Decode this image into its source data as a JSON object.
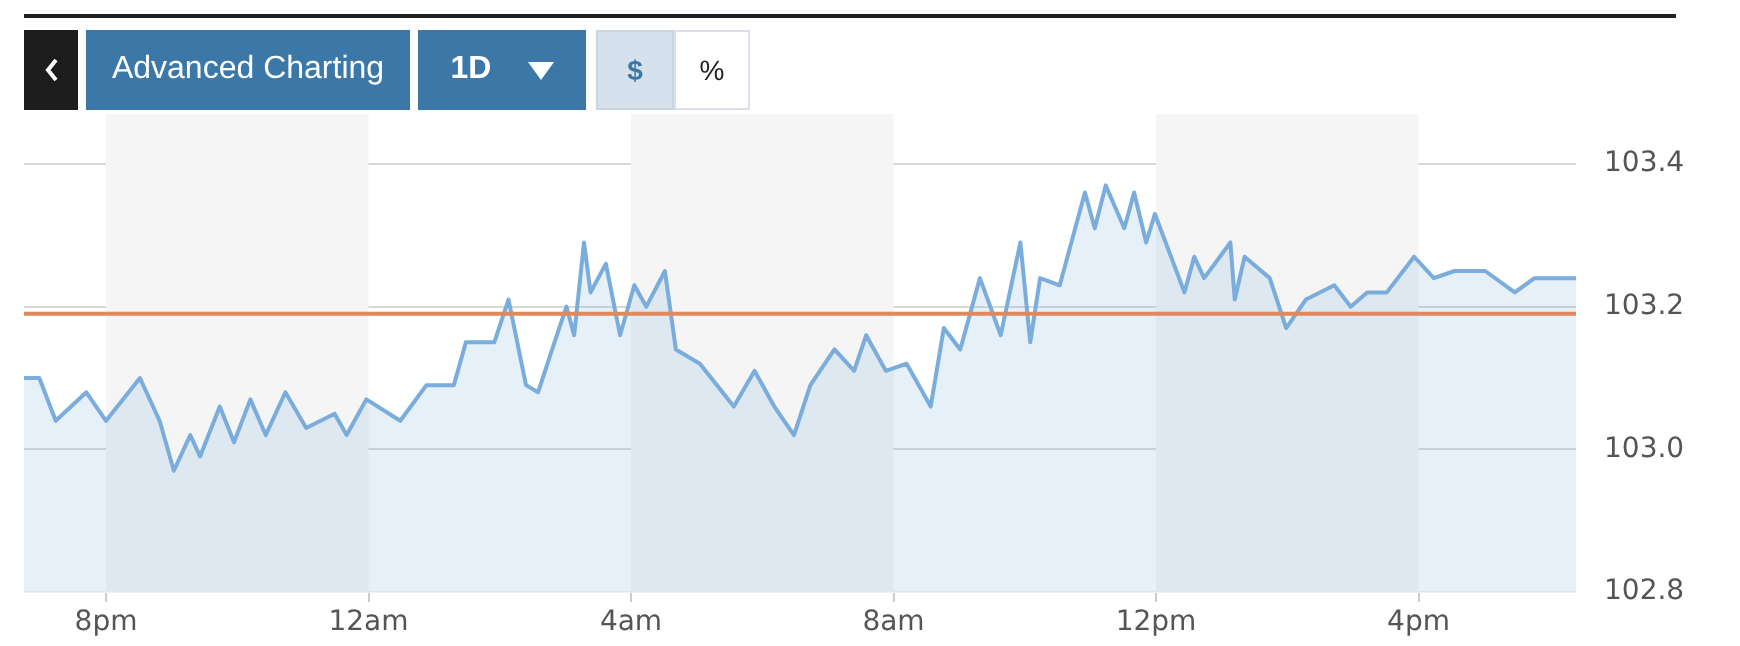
{
  "chart_data": {
    "type": "area",
    "annotations": [
      "Advanced Charting",
      "1D",
      "$",
      "%"
    ],
    "x": [
      "--01-01T18:45",
      "--01-01T18:59",
      "--01-01T19:14",
      "--01-01T19:42",
      "--01-01T20:00",
      "--01-01T20:31",
      "--01-01T20:49",
      "--01-01T21:02",
      "--01-01T21:17",
      "--01-01T21:26",
      "--01-01T21:44",
      "--01-01T21:57",
      "--01-01T22:12",
      "--01-01T22:26",
      "--01-01T22:44",
      "--01-01T23:03",
      "--01-01T23:29",
      "--01-01T23:40",
      "--01-01T23:58",
      "--01-02T00:29",
      "--01-02T00:53",
      "--01-02T01:18",
      "--01-02T01:29",
      "--01-02T01:55",
      "--01-02T02:08",
      "--01-02T02:24",
      "--01-02T02:35",
      "--01-02T02:50",
      "--01-02T03:01",
      "--01-02T03:08",
      "--01-02T03:17",
      "--01-02T03:23",
      "--01-02T03:37",
      "--01-02T03:50",
      "--01-02T04:03",
      "--01-02T04:14",
      "--01-02T04:31",
      "--01-02T04:41",
      "--01-02T05:03",
      "--01-02T05:34",
      "--01-02T05:53",
      "--01-02T06:11",
      "--01-02T06:29",
      "--01-02T06:44",
      "--01-02T07:06",
      "--01-02T07:24",
      "--01-02T07:35",
      "--01-02T07:53",
      "--01-02T08:12",
      "--01-02T08:34",
      "--01-02T08:46",
      "--01-02T09:01",
      "--01-02T09:19",
      "--01-02T09:38",
      "--01-02T09:56",
      "--01-02T10:05",
      "--01-02T10:14",
      "--01-02T10:32",
      "--01-02T10:55",
      "--01-02T11:04",
      "--01-02T11:14",
      "--01-02T11:31",
      "--01-02T11:40",
      "--01-02T11:51",
      "--01-02T11:59",
      "--01-02T12:26",
      "--01-02T12:35",
      "--01-02T12:44",
      "--01-02T13:08",
      "--01-02T13:12",
      "--01-02T13:21",
      "--01-02T13:44",
      "--01-02T13:59",
      "--01-02T14:17",
      "--01-02T14:43",
      "--01-02T14:58",
      "--01-02T15:13",
      "--01-02T15:31",
      "--01-02T15:56",
      "--01-02T16:14",
      "--01-02T16:33",
      "--01-02T17:01",
      "--01-02T17:28",
      "--01-02T17:46",
      "--01-02T17:57",
      "--01-02T18:24"
    ],
    "series": [
      {
        "color": "#7aaddc",
        "values": [
          103.1,
          103.1,
          103.04,
          103.08,
          103.04,
          103.1,
          103.04,
          102.97,
          103.02,
          102.99,
          103.06,
          103.01,
          103.07,
          103.02,
          103.08,
          103.03,
          103.05,
          103.02,
          103.07,
          103.04,
          103.09,
          103.09,
          103.15,
          103.15,
          103.21,
          103.09,
          103.08,
          103.15,
          103.2,
          103.16,
          103.29,
          103.22,
          103.26,
          103.16,
          103.23,
          103.2,
          103.25,
          103.14,
          103.12,
          103.06,
          103.11,
          103.06,
          103.02,
          103.09,
          103.14,
          103.11,
          103.16,
          103.11,
          103.12,
          103.06,
          103.17,
          103.14,
          103.24,
          103.16,
          103.29,
          103.15,
          103.24,
          103.23,
          103.36,
          103.31,
          103.37,
          103.31,
          103.36,
          103.29,
          103.33,
          103.22,
          103.27,
          103.24,
          103.29,
          103.21,
          103.27,
          103.24,
          103.17,
          103.21,
          103.23,
          103.2,
          103.22,
          103.22,
          103.27,
          103.24,
          103.25,
          103.25,
          103.22,
          103.24,
          103.24,
          103.24
        ]
      }
    ],
    "xlim": [
      "--01-01T18:45",
      "--01-02T18:24"
    ],
    "xticks": [
      {
        "value": "--01-01T20:00",
        "label": "8pm"
      },
      {
        "value": "--01-02T00:00",
        "label": "12am"
      },
      {
        "value": "--01-02T04:00",
        "label": "4am"
      },
      {
        "value": "--01-02T08:00",
        "label": "8am"
      },
      {
        "value": "--01-02T12:00",
        "label": "12pm"
      },
      {
        "value": "--01-02T16:00",
        "label": "4pm"
      }
    ],
    "ylim": [
      102.8,
      103.4
    ],
    "yticks": [
      {
        "value": 102.8,
        "label": "102.8"
      },
      {
        "value": 103.0,
        "label": "103.0"
      },
      {
        "value": 103.2,
        "label": "103.2"
      },
      {
        "value": 103.4,
        "label": "103.4"
      }
    ],
    "ref_lines": [
      {
        "axis": "y",
        "value": 103.19,
        "color": "#e0895a"
      }
    ],
    "bands": [
      {
        "axis": "x",
        "from": "--01-01T20:00",
        "to": "--01-02T00:00",
        "color": "#f5f5f5"
      },
      {
        "axis": "x",
        "from": "--01-02T04:00",
        "to": "--01-02T08:00",
        "color": "#f5f5f5"
      },
      {
        "axis": "x",
        "from": "--01-02T12:00",
        "to": "--01-02T16:00",
        "color": "#f5f5f5"
      }
    ],
    "grid": "y",
    "legend": false
  }
}
